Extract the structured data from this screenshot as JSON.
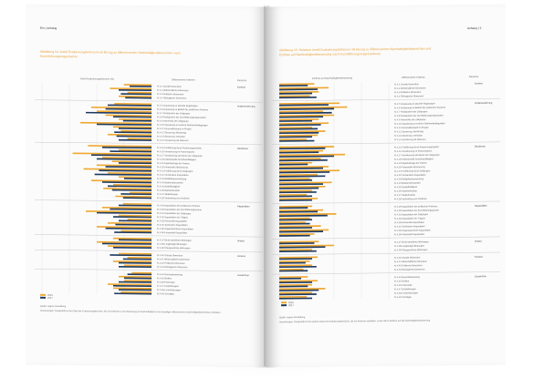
{
  "left_page": {
    "header": "Em | Anhang",
    "figure_title": "Abbildung 14: Anteil Evaluierungskriterium mit Bezug zu differenzierten Nachhaltigkeitsbereichen nach Durchführungsorganisation",
    "col_left": "Anteil Evaluierungskriterium (%)",
    "col_mid": "Differenzierte Kriterien",
    "col_right": "Bereiche",
    "legend": [
      "2016",
      "2017"
    ],
    "source": "Quelle: eigene Darstellung",
    "note": "Anmerkungen: Dargestellt ist der Anteil der Evaluierungsberichte, die ein Kriterium in der Bewertung zur Nachhaltigkeit in den jeweiligen differenzierten Nachhaltigkeitsbereichen enthalten."
  },
  "right_page": {
    "header": "Anhang | 2",
    "figure_title": "Abbildung 15: Relativer Anteil Evaluierungskriterium mit Bezug zu differenzierten Nachhaltigkeitsbereichen und Einfluss auf Nachhaltigkeitsbewertung nach Durchführungsorganisationen",
    "col_left": "Einfluss auf Nachhaltigkeitsbewertung",
    "col_mid": "Differenzierte Kriterien",
    "col_right": "Bereiche",
    "legend": [
      "2016",
      "2017"
    ],
    "source": "Quelle: eigene Darstellung",
    "note": "Anmerkungen: Dargestellt ist der relative Anteil der Evaluierungsberichte, die ein Kriterium enthalten, sowie deren Einfluss auf die Nachhaltigkeitsbewertung."
  },
  "colors": {
    "accent": "#e8a13a",
    "series_a": "#f0a830",
    "series_b": "#1f3a5f"
  },
  "groups": [
    {
      "label": "Kontext",
      "rows": [
        "N: 4.1 Soziale Dimension",
        "N: 4.2 Wirtschaftliche Dimension",
        "N: 4.3 Politische Dimension",
        "N: 4.4 Ökologische Dimension"
      ]
    },
    {
      "label": "Implementierung",
      "rows": [
        "N: 4.5 Anpassung an aktuelle Regelungen",
        "N: 4.6 Anpassung an Bedarf des politischen Partners",
        "N: 4.7 Partizipation der Zielgruppe",
        "N: 4.8 Partizipation der Durchführungsorganisation",
        "N: 4.9 Ownership der Zielgruppe",
        "N: 4.10 Anpassung an externe Rahmenbedingungen",
        "N: 4.11 Personalbestand im Projekt",
        "N: 4.12 Steuerung: Monitoring",
        "N: 4.13 Steuerung: Vorhaben",
        "N: 4.14 Vernetzung mit Akteuren"
      ]
    },
    {
      "label": "Strukturen",
      "rows": [
        "N: 4.15 Fortführung durch Partnerorganisation",
        "N: 4.16 Verankerung im Partnersystem",
        "N: 4.17 Verankerung auf Ebene der Zielgruppe",
        "N: 4.18 Institutionelle Anschlussfähigkeit",
        "N: 4.19 Eigenbeiträge der Partner",
        "N: 4.20 Finanzielle Absicherung",
        "N: 4.21 Fortführung durch Zielgruppe",
        "N: 4.22 Vorhandene Kapazitäten",
        "N: 4.23 Multiplikatorenwirkung",
        "N: 4.24 Breitenwirksamkeit",
        "N: 4.25 Modellhaftigkeit",
        "N: 4.26 Replizierbarkeit",
        "N: 4.27 Skalierbarkeit",
        "N: 4.28 Verbreitung von Ansätzen"
      ]
    },
    {
      "label": "Kapazitäten",
      "rows": [
        "N: 4.29 Kapazitäten des politischen Partners",
        "N: 4.30 Kapazitäten der Durchführungspartner",
        "N: 4.31 Kapazitäten der Zielgruppe",
        "N: 4.32 Kapazitäten der Trägers",
        "N: 4.33 Personelle Kapazitäten",
        "N: 4.34 Technische Kapazitäten",
        "N: 4.35 Organisatorische Kapazitäten",
        "N: 4.36 Finanzielle Kapazitäten"
      ]
    },
    {
      "label": "Impact",
      "rows": [
        "N: 4.37 Nicht intendierte Wirkungen",
        "N: 4.38 Langfristige Wirkungen",
        "N: 4.39 Übergeordnete Wirkungen"
      ]
    },
    {
      "label": "Kontext",
      "rows": [
        "N: 4.40 Soziale Dimension",
        "N: 4.41 Wirtschaftliche Dimension",
        "N: 4.42 Politische Dimension",
        "N: 4.43 Ökologische Dimension"
      ]
    },
    {
      "label": "Zusammen",
      "rows": [
        "N: 4.44 Gesamtbewertung",
        "N: 4.45 Risiken",
        "N: 4.46 Potenziale",
        "N: 4.47 Empfehlungen",
        "N: 4.48 Lernerfahrungen",
        "N: 4.49 Sonstiges"
      ]
    }
  ],
  "chart_data": [
    {
      "type": "bar",
      "orientation": "horizontal",
      "series": [
        {
          "name": "2016",
          "values": [
            0.25,
            0.38,
            0.22,
            0.3,
            0.34,
            0.55,
            0.5,
            0.42,
            0.3,
            0.65,
            0.35,
            0.28,
            0.4,
            0.22,
            0.58,
            0.3,
            0.72,
            0.45,
            0.36,
            0.5,
            0.62,
            0.4,
            0.3,
            0.55,
            0.35,
            0.44,
            0.2,
            0.33,
            0.26,
            0.45,
            0.6,
            0.3,
            0.22,
            0.4,
            0.5,
            0.28,
            0.35,
            0.5,
            0.4,
            0.3,
            0.22,
            0.35,
            0.25,
            0.18,
            0.3,
            0.25,
            0.4,
            0.35,
            0.28
          ]
        },
        {
          "name": "2017",
          "values": [
            0.2,
            0.3,
            0.28,
            0.24,
            0.4,
            0.42,
            0.6,
            0.35,
            0.26,
            0.5,
            0.3,
            0.34,
            0.32,
            0.3,
            0.45,
            0.38,
            0.55,
            0.5,
            0.3,
            0.42,
            0.48,
            0.52,
            0.25,
            0.45,
            0.4,
            0.36,
            0.28,
            0.26,
            0.3,
            0.38,
            0.5,
            0.35,
            0.3,
            0.33,
            0.42,
            0.34,
            0.3,
            0.45,
            0.35,
            0.38,
            0.26,
            0.3,
            0.3,
            0.22,
            0.25,
            0.3,
            0.35,
            0.3,
            0.34
          ]
        }
      ]
    },
    {
      "type": "bar",
      "orientation": "horizontal",
      "series": [
        {
          "name": "2016",
          "values": [
            0.32,
            0.45,
            0.36,
            0.28,
            0.55,
            0.62,
            0.4,
            0.5,
            0.36,
            0.45,
            0.3,
            0.42,
            0.35,
            0.25,
            0.5,
            0.4,
            0.6,
            0.38,
            0.3,
            0.45,
            0.55,
            0.35,
            0.28,
            0.48,
            0.42,
            0.3,
            0.25,
            0.35,
            0.3,
            0.4,
            0.52,
            0.28,
            0.24,
            0.38,
            0.45,
            0.32,
            0.36,
            0.5,
            0.3,
            0.35,
            0.28,
            0.3,
            0.22,
            0.26,
            0.35,
            0.3,
            0.42,
            0.3,
            0.25
          ]
        },
        {
          "name": "2017",
          "values": [
            0.26,
            0.35,
            0.3,
            0.34,
            0.45,
            0.5,
            0.48,
            0.4,
            0.3,
            0.38,
            0.35,
            0.36,
            0.3,
            0.32,
            0.42,
            0.36,
            0.5,
            0.44,
            0.26,
            0.4,
            0.46,
            0.42,
            0.3,
            0.4,
            0.36,
            0.34,
            0.3,
            0.3,
            0.26,
            0.35,
            0.44,
            0.3,
            0.28,
            0.3,
            0.4,
            0.28,
            0.32,
            0.42,
            0.34,
            0.3,
            0.24,
            0.34,
            0.26,
            0.2,
            0.3,
            0.26,
            0.36,
            0.34,
            0.3
          ]
        }
      ]
    }
  ]
}
